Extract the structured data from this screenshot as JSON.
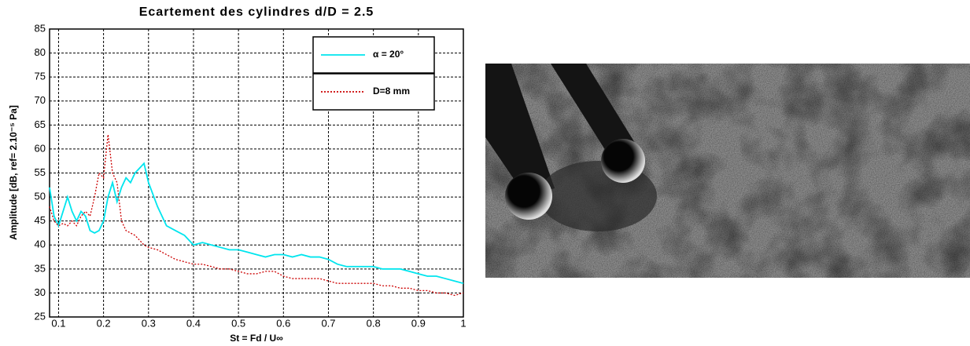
{
  "chart_data": {
    "type": "line",
    "title": "Ecartement des cylindres d/D = 2.5",
    "xlabel": "St = Fd / U∞",
    "ylabel": "Amplitude [dB, ref= 2.10⁻⁵ Pa]",
    "xlim": [
      0.08,
      1
    ],
    "ylim": [
      25,
      85
    ],
    "xticks": [
      0.1,
      0.2,
      0.3,
      0.4,
      0.5,
      0.6,
      0.7,
      0.8,
      0.9,
      1
    ],
    "yticks": [
      25,
      30,
      35,
      40,
      45,
      50,
      55,
      60,
      65,
      70,
      75,
      80,
      85
    ],
    "grid": true,
    "x": [
      0.08,
      0.09,
      0.1,
      0.11,
      0.12,
      0.13,
      0.14,
      0.15,
      0.16,
      0.17,
      0.18,
      0.19,
      0.2,
      0.21,
      0.22,
      0.23,
      0.24,
      0.25,
      0.26,
      0.27,
      0.28,
      0.29,
      0.3,
      0.32,
      0.34,
      0.36,
      0.38,
      0.4,
      0.42,
      0.44,
      0.46,
      0.48,
      0.5,
      0.52,
      0.54,
      0.56,
      0.58,
      0.6,
      0.62,
      0.64,
      0.66,
      0.68,
      0.7,
      0.72,
      0.74,
      0.76,
      0.78,
      0.8,
      0.82,
      0.84,
      0.86,
      0.88,
      0.9,
      0.92,
      0.94,
      0.96,
      0.98,
      1.0
    ],
    "series": [
      {
        "name": "α = 20°",
        "color": "#00e5ee",
        "dash": "solid",
        "values": [
          52,
          46,
          44,
          47,
          50,
          47,
          45,
          47,
          46,
          43,
          42.5,
          43,
          45,
          50,
          53,
          49,
          52,
          54,
          53,
          55,
          56,
          57,
          53,
          48,
          44,
          43,
          42,
          40,
          40.5,
          40,
          39.5,
          39,
          39,
          38.5,
          38,
          37.5,
          38,
          38,
          37.5,
          38,
          37.5,
          37.5,
          37,
          36,
          35.5,
          35.5,
          35.5,
          35.5,
          35,
          35,
          35,
          34.5,
          34,
          33.5,
          33.5,
          33,
          32.5,
          32
        ]
      },
      {
        "name": "D=8 mm",
        "color": "#cc0000",
        "dash": "dotted",
        "values": [
          48,
          45,
          44,
          44.5,
          44,
          45,
          44,
          46,
          47,
          46,
          50,
          55,
          54,
          63,
          55,
          53,
          45,
          43,
          42.5,
          42,
          41,
          40,
          39.5,
          39,
          38,
          37,
          36.5,
          36,
          36,
          35.5,
          35,
          35,
          34.5,
          34,
          34,
          34.5,
          34.5,
          33.5,
          33,
          33,
          33,
          33,
          32.5,
          32,
          32,
          32,
          32,
          32,
          31.5,
          31.5,
          31,
          31,
          30.5,
          30.5,
          30,
          30,
          29.5,
          30
        ]
      }
    ]
  }
}
